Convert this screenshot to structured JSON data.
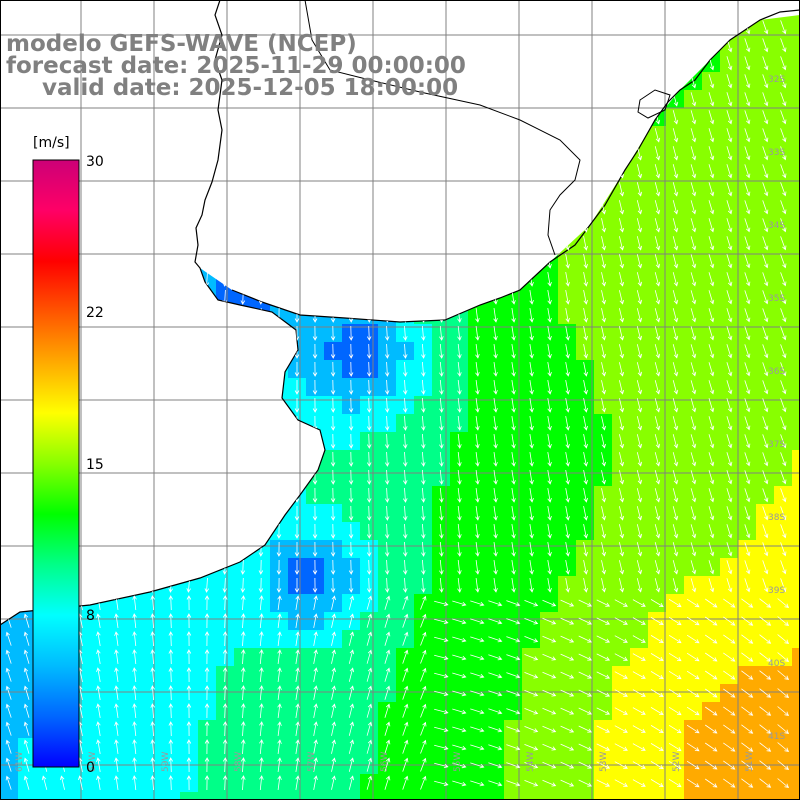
{
  "title": {
    "line1": "modelo GEFS-WAVE (NCEP)",
    "line2": "forecast date: 2025-11-29 00:00:00",
    "line3": "valid date: 2025-12-05 18:00:00"
  },
  "colorbar": {
    "unit": "[m/s]",
    "ticks": [
      "30",
      "22",
      "15",
      "8",
      "0"
    ],
    "colors": [
      "#0000ff",
      "#0066ff",
      "#00bbff",
      "#00ffff",
      "#00ff88",
      "#00ff00",
      "#88ff00",
      "#ffff00",
      "#ffaa00",
      "#ff5500",
      "#ff0000",
      "#ff0066",
      "#cc0077"
    ]
  },
  "axes": {
    "lat_labels": [
      "32S",
      "33S",
      "34S",
      "35S",
      "36S",
      "37S",
      "38S",
      "39S",
      "40S",
      "41S"
    ],
    "lon_labels": [
      "61W",
      "60W",
      "59W",
      "58W",
      "57W",
      "56W",
      "55W",
      "54W",
      "53W",
      "52W",
      "51W"
    ]
  },
  "legend_colors": {
    "land": "#ffffff",
    "grid": "#808080",
    "coast": "#000000",
    "arrow": "#ffffff"
  }
}
